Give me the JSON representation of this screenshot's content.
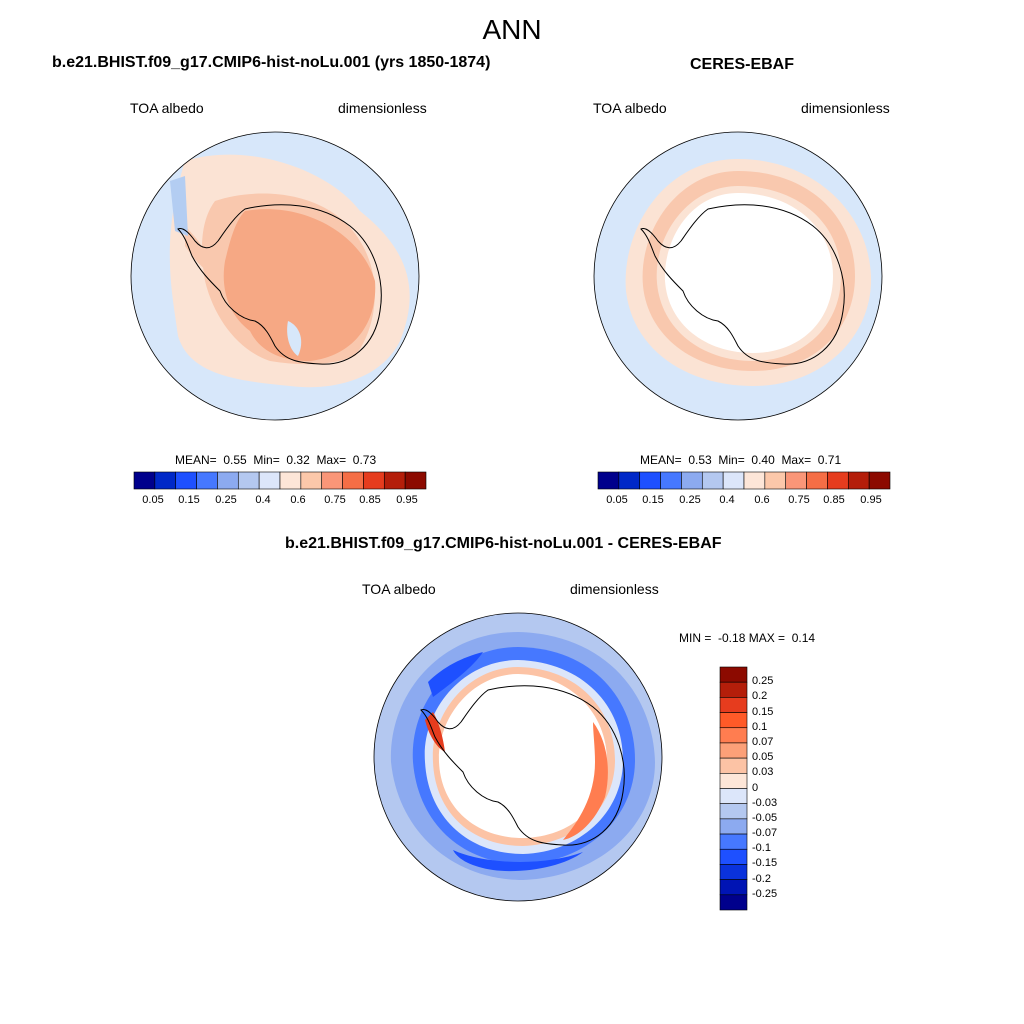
{
  "figure": {
    "title": "ANN"
  },
  "panels": {
    "model": {
      "title": "b.e21.BHIST.f09_g17.CMIP6-hist-noLu.001 (yrs 1850-1874)",
      "left_label": "TOA albedo",
      "right_label": "dimensionless",
      "stats": {
        "mean_label": "MEAN=",
        "mean": "0.55",
        "min_label": "Min=",
        "min": "0.32",
        "max_label": "Max=",
        "max": "0.73"
      }
    },
    "obs": {
      "title": "CERES-EBAF",
      "left_label": "TOA albedo",
      "right_label": "dimensionless",
      "stats": {
        "mean_label": "MEAN=",
        "mean": "0.53",
        "min_label": "Min=",
        "min": "0.40",
        "max_label": "Max=",
        "max": "0.71"
      }
    },
    "diff": {
      "title": "b.e21.BHIST.f09_g17.CMIP6-hist-noLu.001 - CERES-EBAF",
      "left_label": "TOA albedo",
      "right_label": "dimensionless",
      "stats": {
        "min_label": "MIN =",
        "min": "-0.18",
        "max_label": "MAX =",
        "max": "0.14"
      }
    }
  },
  "colorbars": {
    "absolute": {
      "colors": [
        "#00008c",
        "#0028c8",
        "#1e50ff",
        "#4678ff",
        "#8caaf0",
        "#b4c8f0",
        "#dce6fa",
        "#fde6d8",
        "#fcc8aa",
        "#fa9678",
        "#f56e46",
        "#e63c1e",
        "#b41e0a",
        "#8c0a00"
      ],
      "ticks": [
        "0.05",
        "0.15",
        "0.25",
        "0.4",
        "0.6",
        "0.75",
        "0.85",
        "0.95"
      ]
    },
    "difference": {
      "colors": [
        "#8c0a00",
        "#b41e0a",
        "#e63c1e",
        "#ff5a28",
        "#ff7d50",
        "#fca078",
        "#fcc3a5",
        "#fde6d8",
        "#dce6fa",
        "#b4c8f0",
        "#8caaf0",
        "#4678ff",
        "#1e50ff",
        "#0a32dc",
        "#0014b4",
        "#00008c"
      ],
      "ticks": [
        "0.25",
        "0.2",
        "0.15",
        "0.1",
        "0.07",
        "0.05",
        "0.03",
        "0",
        "-0.03",
        "-0.05",
        "-0.07",
        "-0.1",
        "-0.15",
        "-0.2",
        "-0.25"
      ]
    }
  }
}
